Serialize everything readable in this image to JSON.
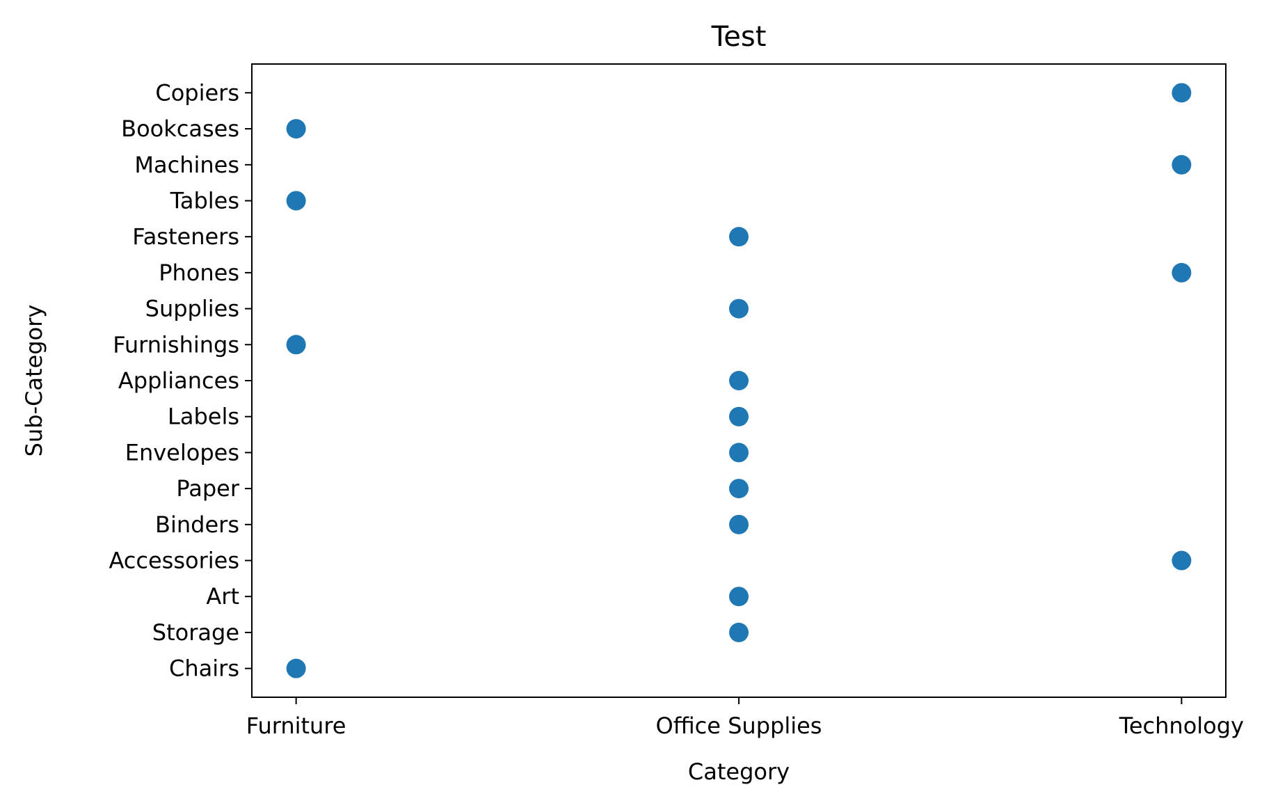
{
  "chart_data": {
    "type": "scatter",
    "title": "Test",
    "xlabel": "Category",
    "ylabel": "Sub-Category",
    "x_categories": [
      "Furniture",
      "Office Supplies",
      "Technology"
    ],
    "y_categories": [
      "Chairs",
      "Storage",
      "Art",
      "Accessories",
      "Binders",
      "Paper",
      "Envelopes",
      "Labels",
      "Appliances",
      "Furnishings",
      "Supplies",
      "Phones",
      "Fasteners",
      "Tables",
      "Machines",
      "Bookcases",
      "Copiers"
    ],
    "points": [
      {
        "x": "Furniture",
        "y": "Chairs"
      },
      {
        "x": "Office Supplies",
        "y": "Storage"
      },
      {
        "x": "Office Supplies",
        "y": "Art"
      },
      {
        "x": "Technology",
        "y": "Accessories"
      },
      {
        "x": "Office Supplies",
        "y": "Binders"
      },
      {
        "x": "Office Supplies",
        "y": "Paper"
      },
      {
        "x": "Office Supplies",
        "y": "Envelopes"
      },
      {
        "x": "Office Supplies",
        "y": "Labels"
      },
      {
        "x": "Office Supplies",
        "y": "Appliances"
      },
      {
        "x": "Furniture",
        "y": "Furnishings"
      },
      {
        "x": "Office Supplies",
        "y": "Supplies"
      },
      {
        "x": "Technology",
        "y": "Phones"
      },
      {
        "x": "Office Supplies",
        "y": "Fasteners"
      },
      {
        "x": "Furniture",
        "y": "Tables"
      },
      {
        "x": "Technology",
        "y": "Machines"
      },
      {
        "x": "Furniture",
        "y": "Bookcases"
      },
      {
        "x": "Technology",
        "y": "Copiers"
      }
    ],
    "marker_color": "#1f77b4",
    "grid": false,
    "legend": false
  }
}
